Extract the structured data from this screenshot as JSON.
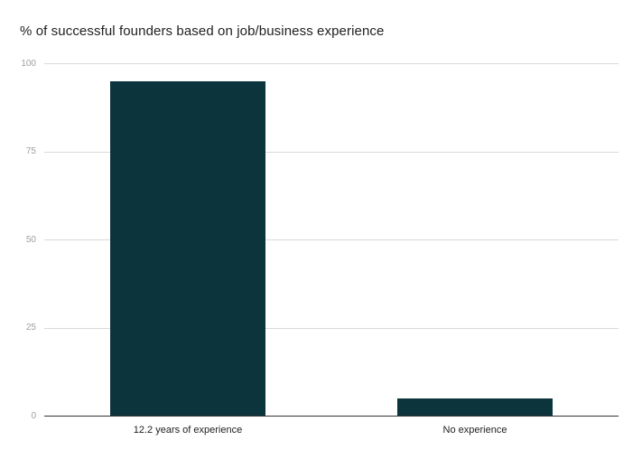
{
  "chart_data": {
    "type": "bar",
    "title": "% of successful founders based on job/business experience",
    "categories": [
      "12.2 years of experience",
      "No experience"
    ],
    "values": [
      95,
      5
    ],
    "xlabel": "",
    "ylabel": "",
    "ylim": [
      0,
      100
    ],
    "yticks": [
      0,
      25,
      50,
      75,
      100
    ],
    "grid": true,
    "legend": "none",
    "colors": {
      "bar": "#0c343d",
      "gridline": "#dadada",
      "axis_line": "#333333",
      "tick_label": "#9e9e9e",
      "category_label": "#212121",
      "title": "#212121",
      "background": "#ffffff"
    }
  }
}
